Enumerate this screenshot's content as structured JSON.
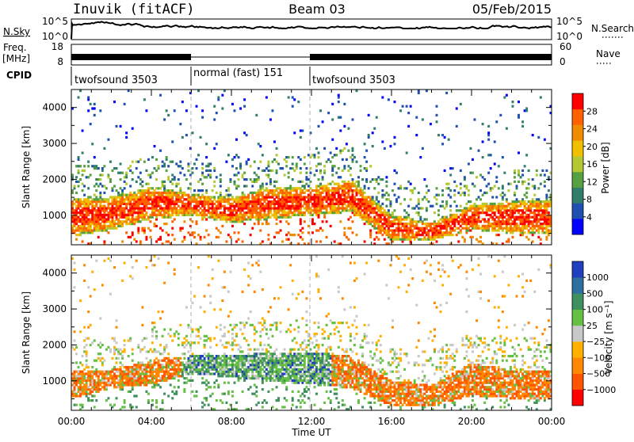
{
  "header": {
    "station": "Inuvik (fitACF)",
    "beam": "Beam 03",
    "date": "05/Feb/2015"
  },
  "status_panel": {
    "nsky_label": "N.Sky",
    "nsky_ticks": [
      "10^5",
      "10^0"
    ],
    "nsearch_label": "N.Search",
    "freq_label_line1": "Freq.",
    "freq_label_line2": "[MHz]",
    "freq_ticks": [
      "18",
      "8"
    ],
    "nave_label": "Nave",
    "nave_ticks": [
      "60",
      "0"
    ],
    "cpid_label": "CPID",
    "cpid_segments": [
      {
        "label": "twofsound 3503",
        "start_hour": 0,
        "end_hour": 6
      },
      {
        "label": "normal (fast) 151",
        "start_hour": 6,
        "end_hour": 12
      },
      {
        "label": "twofsound 3503",
        "start_hour": 12,
        "end_hour": 24
      }
    ]
  },
  "chart_data": [
    {
      "type": "heatmap",
      "title": "",
      "xlabel": "Time UT",
      "ylabel": "Slant Range [km]",
      "xlim": [
        0,
        24
      ],
      "ylim": [
        180,
        4500
      ],
      "x_ticks": [
        "00:00",
        "04:00",
        "08:00",
        "12:00",
        "16:00",
        "20:00",
        "00:00"
      ],
      "y_ticks": [
        1000,
        2000,
        3000,
        4000
      ],
      "colorbar": {
        "label": "Power [dB]",
        "ticks": [
          4,
          8,
          12,
          16,
          20,
          24,
          28
        ],
        "range": [
          0,
          32
        ],
        "colors": [
          "#0000ff",
          "#1f4fb0",
          "#2f7d6a",
          "#55a040",
          "#b4c832",
          "#f0c000",
          "#f08c00",
          "#ff6000",
          "#ff0000"
        ]
      },
      "dominant_echo_band_km": [
        {
          "hour": 0,
          "low": 400,
          "high": 1500
        },
        {
          "hour": 2,
          "low": 600,
          "high": 1500
        },
        {
          "hour": 4,
          "low": 900,
          "high": 1800
        },
        {
          "hour": 6,
          "low": 1000,
          "high": 1600
        },
        {
          "hour": 8,
          "low": 800,
          "high": 1500
        },
        {
          "hour": 10,
          "low": 900,
          "high": 1800
        },
        {
          "hour": 12,
          "low": 1000,
          "high": 1800
        },
        {
          "hour": 14,
          "low": 1100,
          "high": 2000
        },
        {
          "hour": 16,
          "low": 300,
          "high": 1000
        },
        {
          "hour": 18,
          "low": 300,
          "high": 800
        },
        {
          "hour": 20,
          "low": 600,
          "high": 1300
        },
        {
          "hour": 22,
          "low": 500,
          "high": 1400
        },
        {
          "hour": 24,
          "low": 500,
          "high": 1400
        }
      ]
    },
    {
      "type": "heatmap",
      "title": "",
      "xlabel": "Time UT",
      "ylabel": "Slant Range [km]",
      "xlim": [
        0,
        24
      ],
      "ylim": [
        180,
        4500
      ],
      "x_ticks": [
        "00:00",
        "04:00",
        "08:00",
        "12:00",
        "16:00",
        "20:00",
        "00:00"
      ],
      "y_ticks": [
        1000,
        2000,
        3000,
        4000
      ],
      "colorbar": {
        "label": "Velocity [m s⁻¹]",
        "ticks": [
          "1000",
          "500",
          "100",
          "25",
          "−25",
          "−100",
          "−500",
          "−1000"
        ],
        "colors": [
          "#1f3fbf",
          "#2f6f9f",
          "#3f8f5f",
          "#66c044",
          "#c8c8c8",
          "#ffb000",
          "#ff8800",
          "#ff5500",
          "#ff0000"
        ]
      },
      "dominant_echo_band_km": [
        {
          "hour": 0,
          "low": 500,
          "high": 1300
        },
        {
          "hour": 2,
          "low": 800,
          "high": 1300
        },
        {
          "hour": 4,
          "low": 900,
          "high": 1600
        },
        {
          "hour": 6,
          "low": 1200,
          "high": 1700
        },
        {
          "hour": 8,
          "low": 1100,
          "high": 1700
        },
        {
          "hour": 10,
          "low": 1000,
          "high": 1800
        },
        {
          "hour": 12,
          "low": 900,
          "high": 1800
        },
        {
          "hour": 14,
          "low": 800,
          "high": 1700
        },
        {
          "hour": 16,
          "low": 300,
          "high": 1000
        },
        {
          "hour": 18,
          "low": 300,
          "high": 900
        },
        {
          "hour": 20,
          "low": 600,
          "high": 1500
        },
        {
          "hour": 22,
          "low": 500,
          "high": 1300
        },
        {
          "hour": 24,
          "low": 500,
          "high": 1300
        }
      ]
    }
  ]
}
